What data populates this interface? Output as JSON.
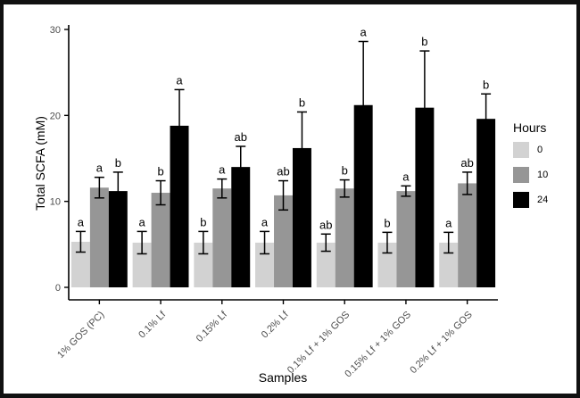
{
  "chart_data": {
    "type": "bar",
    "title": "",
    "xlabel": "Samples",
    "ylabel": "Total SCFA (mM)",
    "ylim": [
      0,
      30
    ],
    "yticks": [
      0,
      10,
      20,
      30
    ],
    "grid": false,
    "legend": {
      "title": "Hours",
      "position": "right"
    },
    "categories": [
      "1% GOS (PC)",
      "0.1% Lf",
      "0.15% Lf",
      "0.2% Lf",
      "0.1% Lf + 1% GOS",
      "0.15% Lf + 1% GOS",
      "0.2% Lf + 1% GOS"
    ],
    "series": [
      {
        "name": "0",
        "color": "#d2d2d2",
        "values": [
          5.3,
          5.2,
          5.2,
          5.2,
          5.2,
          5.2,
          5.2
        ],
        "errors": [
          1.2,
          1.3,
          1.3,
          1.3,
          1.0,
          1.2,
          1.2
        ],
        "sig_letters": [
          "a",
          "a",
          "b",
          "a",
          "ab",
          "b",
          "a"
        ]
      },
      {
        "name": "10",
        "color": "#969696",
        "values": [
          11.6,
          11.0,
          11.5,
          10.7,
          11.5,
          11.2,
          12.1
        ],
        "errors": [
          1.2,
          1.4,
          1.1,
          1.7,
          1.0,
          0.6,
          1.3
        ],
        "sig_letters": [
          "a",
          "b",
          "a",
          "ab",
          "b",
          "a",
          "ab"
        ]
      },
      {
        "name": "24",
        "color": "#000000",
        "values": [
          11.2,
          18.8,
          14.0,
          16.2,
          21.2,
          20.9,
          19.6
        ],
        "errors": [
          2.2,
          4.2,
          2.4,
          4.2,
          7.4,
          6.6,
          2.9
        ],
        "sig_letters": [
          "b",
          "a",
          "ab",
          "b",
          "a",
          "b",
          "b"
        ]
      }
    ],
    "axis_tick_color": "#4d4d4d",
    "axis_line_color": "#000000"
  }
}
